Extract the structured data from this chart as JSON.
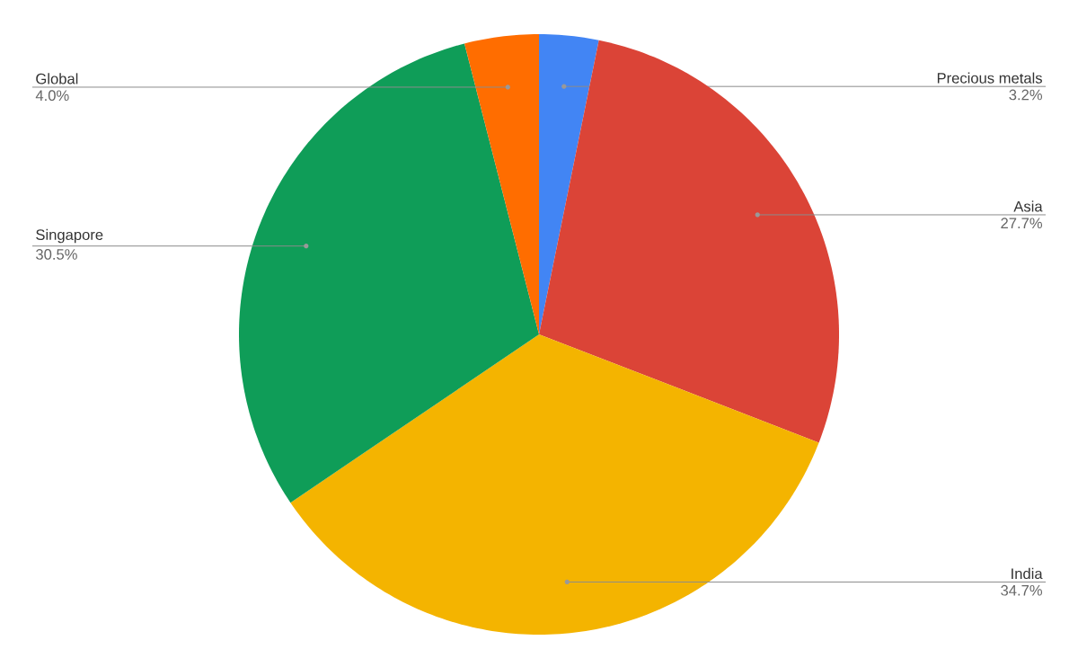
{
  "chart_data": {
    "type": "pie",
    "categories": [
      "Precious metals",
      "Asia",
      "India",
      "Singapore",
      "Global"
    ],
    "values": [
      3.2,
      27.7,
      34.7,
      30.5,
      4.0
    ],
    "value_labels": [
      "3.2%",
      "27.7%",
      "34.7%",
      "30.5%",
      "4.0%"
    ],
    "colors": [
      "#4285f4",
      "#db4437",
      "#f4b400",
      "#0f9d58",
      "#ff6d00"
    ]
  }
}
